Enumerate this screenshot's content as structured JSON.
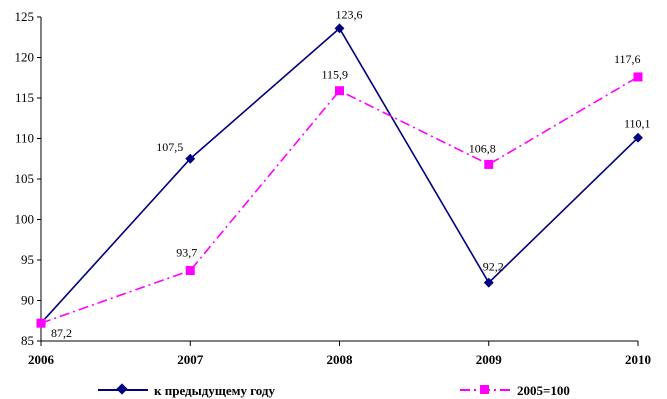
{
  "chart_data": {
    "type": "line",
    "categories": [
      "2006",
      "2007",
      "2008",
      "2009",
      "2010"
    ],
    "ylim": [
      85,
      125
    ],
    "yticks": [
      85,
      90,
      95,
      100,
      105,
      110,
      115,
      120,
      125
    ],
    "grid": false,
    "legend": "bottom",
    "series": [
      {
        "name": "к предыдущему году",
        "values": [
          87.2,
          107.5,
          123.6,
          92.2,
          110.1
        ],
        "labels": [
          "",
          "107,5",
          "123,6",
          "92,2",
          "110,1"
        ],
        "color": "#000080",
        "marker": "diamond",
        "dash": "solid"
      },
      {
        "name": "2005=100",
        "values": [
          87.2,
          93.7,
          115.9,
          106.8,
          117.6
        ],
        "labels": [
          "87,2",
          "93,7",
          "115,9",
          "106,8",
          "117,6"
        ],
        "color": "#ff00ff",
        "marker": "square",
        "dash": "dashdot"
      }
    ]
  }
}
